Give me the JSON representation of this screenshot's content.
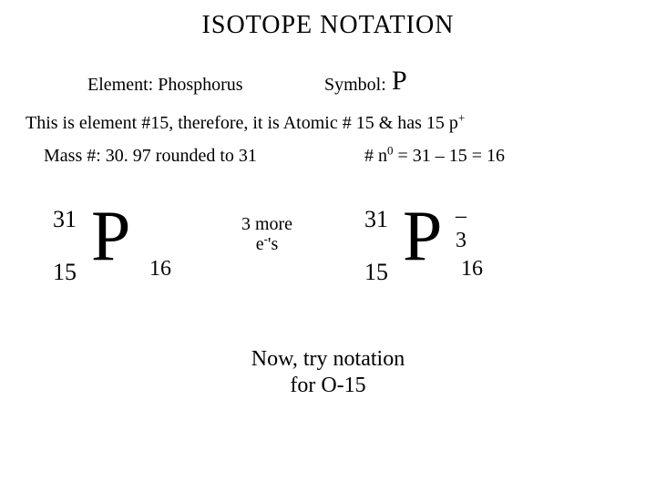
{
  "title": "ISOTOPE  NOTATION",
  "elementRow": {
    "elementLabel": "Element:",
    "elementName": "Phosphorus",
    "symbolLabel": "Symbol:",
    "symbol": "P"
  },
  "line2": {
    "prefix": "This is element #15, therefore, it is ",
    "atomicPart": "Atomic # 15 & has 15 p",
    "plus": "+"
  },
  "massLine": {
    "label": "Mass #:",
    "value": "30. 97 rounded to 31"
  },
  "neutronLine": {
    "nLabel": "# n",
    "nSup": "0",
    "calc": " = 31 – 15 = 16"
  },
  "arrowLabel": {
    "line1": "3 more",
    "ePrefix": "e",
    "eSup": "-",
    "eSuffix": "'s"
  },
  "notationLeft": {
    "mass": "31",
    "atomic": "15",
    "symbol": "P",
    "neutrons": "16",
    "charge": ""
  },
  "notationRight": {
    "mass": "31",
    "atomic": "15",
    "symbol": "P",
    "neutrons": "16",
    "charge": "–3"
  },
  "tryLine": {
    "l1": "Now, try notation",
    "l2": "for O-15"
  },
  "colors": {
    "background": "#ffffff",
    "text": "#000000"
  }
}
